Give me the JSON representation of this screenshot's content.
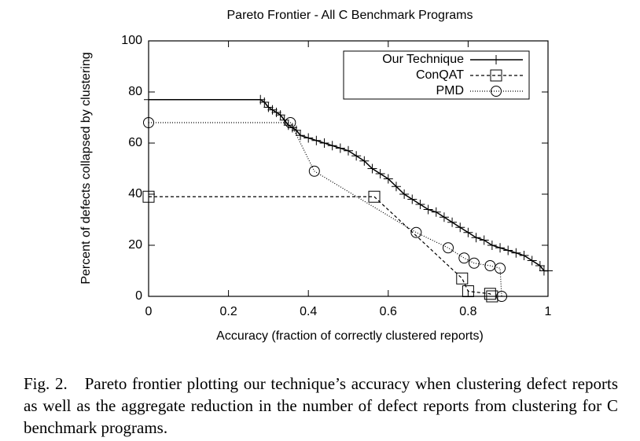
{
  "chart_data": {
    "type": "line",
    "title": "Pareto Frontier - All C Benchmark Programs",
    "xlabel": "Accuracy (fraction of correctly clustered reports)",
    "ylabel": "Percent of defects collapsed by clustering",
    "xlim": [
      0,
      1
    ],
    "ylim": [
      0,
      100
    ],
    "xticks": [
      0,
      0.2,
      0.4,
      0.6,
      0.8,
      1
    ],
    "yticks": [
      0,
      20,
      40,
      60,
      80,
      100
    ],
    "legend": "top-right",
    "series": [
      {
        "name": "Our Technique",
        "color": "#000000",
        "marker": "plus",
        "dash": "none",
        "x": [
          0,
          0.28,
          0.29,
          0.3,
          0.31,
          0.32,
          0.33,
          0.34,
          0.35,
          0.36,
          0.37,
          0.38,
          0.4,
          0.42,
          0.44,
          0.46,
          0.48,
          0.5,
          0.52,
          0.54,
          0.56,
          0.58,
          0.6,
          0.62,
          0.64,
          0.66,
          0.68,
          0.7,
          0.72,
          0.74,
          0.76,
          0.78,
          0.8,
          0.82,
          0.84,
          0.86,
          0.88,
          0.9,
          0.92,
          0.94,
          0.96,
          0.98,
          0.99,
          1
        ],
        "values": [
          77,
          77,
          76,
          74,
          73,
          72,
          71,
          69,
          67,
          66,
          65,
          63,
          62,
          61,
          60,
          59,
          58,
          57,
          55,
          53,
          50,
          48,
          46,
          43,
          40,
          38,
          36,
          34,
          33,
          31,
          29,
          27,
          25,
          23,
          22,
          20,
          19,
          18,
          17,
          16,
          14,
          12,
          10,
          10
        ]
      },
      {
        "name": "ConQAT",
        "color": "#000000",
        "marker": "square",
        "dash": "4,3",
        "x": [
          0,
          0.565,
          0.785,
          0.8,
          0.855,
          0.86
        ],
        "values": [
          39,
          39,
          7,
          2,
          1,
          0
        ]
      },
      {
        "name": "PMD",
        "color": "#000000",
        "marker": "circle",
        "dash": "1,2",
        "x": [
          0,
          0.355,
          0.415,
          0.67,
          0.75,
          0.79,
          0.815,
          0.855,
          0.88,
          0.884
        ],
        "values": [
          68,
          68,
          49,
          25,
          19,
          15,
          13,
          12,
          11,
          0
        ]
      }
    ]
  },
  "caption": {
    "label": "Fig. 2.",
    "text": "Pareto frontier plotting our technique’s accuracy when clustering defect reports as well as the aggregate reduction in the number of defect reports from clustering for C benchmark programs."
  }
}
